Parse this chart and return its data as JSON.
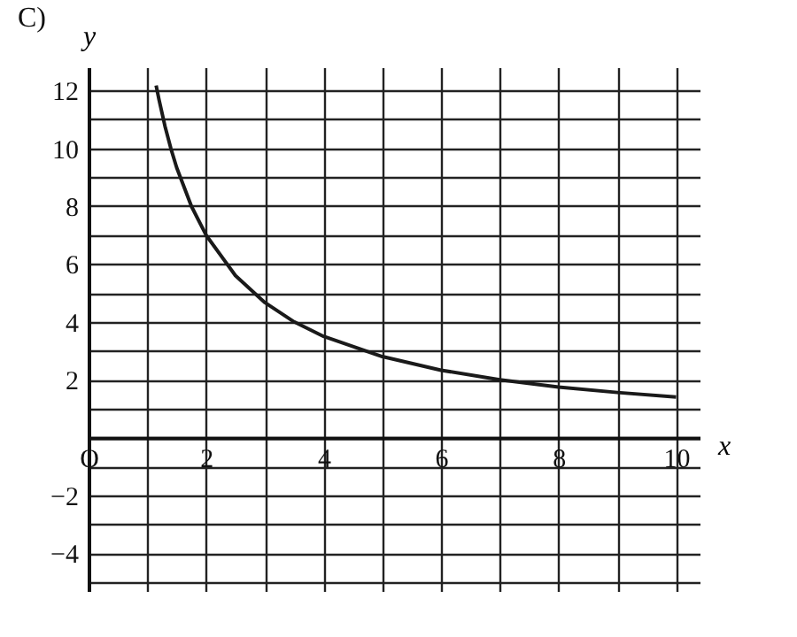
{
  "chart_data": {
    "type": "line",
    "title": "C)",
    "xlabel": "x",
    "ylabel": "y",
    "x": [
      1.15,
      1.2,
      1.3,
      1.4,
      1.5,
      1.75,
      2,
      2.5,
      3,
      3.5,
      4,
      5,
      6,
      7,
      8,
      9,
      10
    ],
    "series": [
      {
        "color": "#1a1a1a",
        "values": [
          12.17,
          11.67,
          10.77,
          10,
          9.33,
          8,
          7,
          5.6,
          4.67,
          4,
          3.5,
          2.8,
          2.33,
          2,
          1.75,
          1.56,
          1.4
        ]
      }
    ],
    "xlim": [
      0,
      10.4
    ],
    "ylim": [
      -5.3,
      12.8
    ],
    "xticks": [
      {
        "value": 0,
        "label": "O"
      },
      {
        "value": 1,
        "label": null
      },
      2,
      {
        "value": 3,
        "label": null
      },
      4,
      {
        "value": 5,
        "label": null
      },
      6,
      {
        "value": 7,
        "label": null
      },
      8,
      {
        "value": 9,
        "label": null
      },
      10
    ],
    "yticks": [
      {
        "value": -5,
        "label": null
      },
      -4,
      {
        "value": -3,
        "label": null
      },
      -2,
      {
        "value": -1,
        "label": null
      },
      {
        "value": 0,
        "label": null
      },
      {
        "value": 1,
        "label": null
      },
      2,
      {
        "value": 3,
        "label": null
      },
      4,
      {
        "value": 5,
        "label": null
      },
      6,
      {
        "value": 7,
        "label": null
      },
      8,
      {
        "value": 9,
        "label": null
      },
      10,
      {
        "value": 11,
        "label": null
      },
      12
    ],
    "grid": true,
    "marker": "none",
    "line_style": "solid"
  }
}
